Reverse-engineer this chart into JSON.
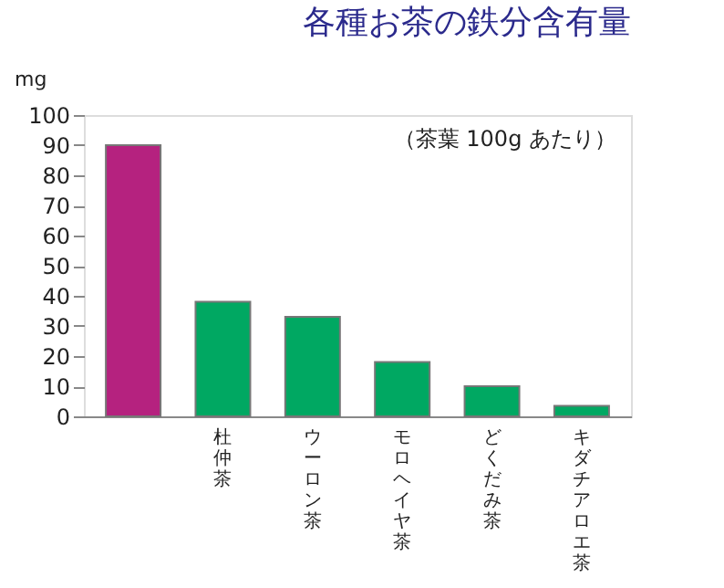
{
  "chart_data": {
    "type": "bar",
    "title": "各種お茶の鉄分含有量",
    "ylabel": "mg",
    "annotations": [
      "（茶葉 100g あたり）"
    ],
    "categories": [
      null,
      "杜仲茶",
      "ウーロン茶",
      "モロヘイヤ茶",
      "どくだみ茶",
      "キダチアロエ茶"
    ],
    "values": [
      90,
      38,
      33,
      18,
      10,
      3.5
    ],
    "colors": [
      "#b5227f",
      "#00a862",
      "#00a862",
      "#00a862",
      "#00a862",
      "#00a862"
    ],
    "ylim": [
      0,
      100
    ],
    "yticks": [
      0,
      10,
      20,
      30,
      40,
      50,
      60,
      70,
      80,
      90,
      100
    ],
    "grid": false
  }
}
